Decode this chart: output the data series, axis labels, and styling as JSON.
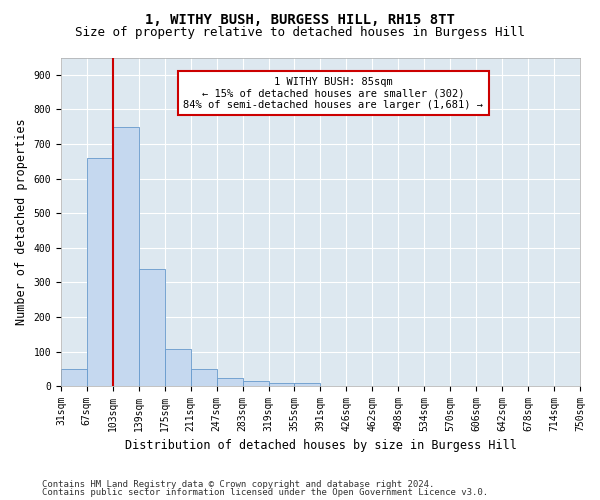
{
  "title": "1, WITHY BUSH, BURGESS HILL, RH15 8TT",
  "subtitle": "Size of property relative to detached houses in Burgess Hill",
  "xlabel": "Distribution of detached houses by size in Burgess Hill",
  "ylabel": "Number of detached properties",
  "bar_values": [
    50,
    660,
    750,
    340,
    108,
    50,
    25,
    15,
    10,
    8,
    0,
    0,
    0,
    0,
    0,
    0,
    0,
    0,
    0,
    0
  ],
  "bar_labels": [
    "31sqm",
    "67sqm",
    "103sqm",
    "139sqm",
    "175sqm",
    "211sqm",
    "247sqm",
    "283sqm",
    "319sqm",
    "355sqm",
    "391sqm",
    "426sqm",
    "462sqm",
    "498sqm",
    "534sqm",
    "570sqm",
    "606sqm",
    "642sqm",
    "678sqm",
    "714sqm",
    "750sqm"
  ],
  "bar_color": "#c5d8ef",
  "bar_edge_color": "#6699cc",
  "red_line_x": 2.0,
  "annotation_text": "1 WITHY BUSH: 85sqm\n← 15% of detached houses are smaller (302)\n84% of semi-detached houses are larger (1,681) →",
  "annotation_box_color": "#ffffff",
  "annotation_box_edge_color": "#cc0000",
  "ylim": [
    0,
    950
  ],
  "yticks": [
    0,
    100,
    200,
    300,
    400,
    500,
    600,
    700,
    800,
    900
  ],
  "footer1": "Contains HM Land Registry data © Crown copyright and database right 2024.",
  "footer2": "Contains public sector information licensed under the Open Government Licence v3.0.",
  "fig_bg_color": "#ffffff",
  "plot_bg_color": "#dde8f0",
  "grid_color": "#ffffff",
  "title_fontsize": 10,
  "subtitle_fontsize": 9,
  "xlabel_fontsize": 8.5,
  "ylabel_fontsize": 8.5,
  "tick_fontsize": 7,
  "footer_fontsize": 6.5,
  "annotation_fontsize": 7.5
}
